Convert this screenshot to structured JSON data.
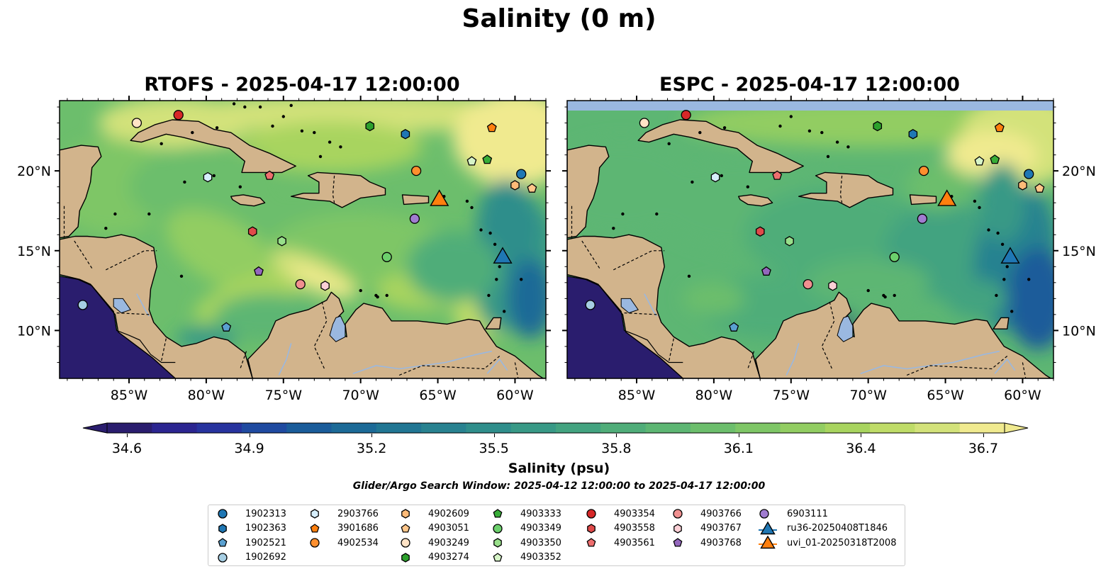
{
  "figure": {
    "title": "Salinity (0 m)",
    "search_window": "Glider/Argo Search Window: 2025-04-12 12:00:00 to 2025-04-17 12:00:00"
  },
  "panels": [
    {
      "title": "RTOFS - 2025-04-17 12:00:00",
      "model": "RTOFS"
    },
    {
      "title": "ESPC - 2025-04-17 12:00:00",
      "model": "ESPC"
    }
  ],
  "map": {
    "lon_ticks": [
      "85°W",
      "80°W",
      "75°W",
      "70°W",
      "65°W",
      "60°W"
    ],
    "lat_ticks": [
      "20°N",
      "15°N",
      "10°N"
    ],
    "land_color": "#d2b48c",
    "lake_color": "#9ab8e0"
  },
  "colorbar": {
    "label": "Salinity (psu)",
    "ticks": [
      "34.6",
      "34.9",
      "35.2",
      "35.5",
      "35.8",
      "36.1",
      "36.4",
      "36.7"
    ],
    "colors": [
      "#2a1d6e",
      "#2b2590",
      "#27339e",
      "#1f4aa0",
      "#1a5c9a",
      "#1c6a97",
      "#217693",
      "#288290",
      "#2f8e8b",
      "#389986",
      "#43a380",
      "#50ad79",
      "#5db673",
      "#6cbe6c",
      "#7ec666",
      "#92cd62",
      "#a8d45f",
      "#bfdc68",
      "#d3e27a",
      "#f0ea8f"
    ]
  },
  "legend": {
    "items": [
      {
        "label": "1902313",
        "marker": "circle",
        "color": "#1f77b4"
      },
      {
        "label": "1902363",
        "marker": "hexagon",
        "color": "#1f77b4"
      },
      {
        "label": "1902521",
        "marker": "pentagon",
        "color": "#5aa0d0"
      },
      {
        "label": "1902692",
        "marker": "circle",
        "color": "#a6cee3"
      },
      {
        "label": "2903766",
        "marker": "hexagon",
        "color": "#d6eefc"
      },
      {
        "label": "3901686",
        "marker": "pentagon",
        "color": "#ff7f0e"
      },
      {
        "label": "4902534",
        "marker": "circle",
        "color": "#ff8f2e"
      },
      {
        "label": "4902609",
        "marker": "hexagon",
        "color": "#ffbb78"
      },
      {
        "label": "4903051",
        "marker": "pentagon",
        "color": "#ffc68a"
      },
      {
        "label": "4903249",
        "marker": "circle",
        "color": "#ffe3c6"
      },
      {
        "label": "4903274",
        "marker": "hexagon",
        "color": "#2ca02c"
      },
      {
        "label": "4903333",
        "marker": "pentagon",
        "color": "#38ad38"
      },
      {
        "label": "4903349",
        "marker": "circle",
        "color": "#6cd06c"
      },
      {
        "label": "4903350",
        "marker": "hexagon",
        "color": "#98df8a"
      },
      {
        "label": "4903352",
        "marker": "pentagon",
        "color": "#d7f5c8"
      },
      {
        "label": "4903354",
        "marker": "circle",
        "color": "#d62728"
      },
      {
        "label": "4903558",
        "marker": "hexagon",
        "color": "#e04a4a"
      },
      {
        "label": "4903561",
        "marker": "pentagon",
        "color": "#ee6e6e"
      },
      {
        "label": "4903766",
        "marker": "circle",
        "color": "#f09090"
      },
      {
        "label": "4903767",
        "marker": "hexagon",
        "color": "#fcd0d6"
      },
      {
        "label": "4903768",
        "marker": "pentagon",
        "color": "#9467bd"
      },
      {
        "label": "6903111",
        "marker": "circle",
        "color": "#a07cd0"
      },
      {
        "label": "ru36-20250408T1846",
        "marker": "triangle",
        "color": "#1f77b4"
      },
      {
        "label": "uvi_01-20250318T2008",
        "marker": "triangle",
        "color": "#ff7f0e"
      }
    ]
  },
  "floats": [
    {
      "id": "1902313",
      "lon": -59.6,
      "lat": 19.8
    },
    {
      "id": "1902363",
      "lon": -67.1,
      "lat": 22.3
    },
    {
      "id": "1902521",
      "lon": -78.7,
      "lat": 10.2
    },
    {
      "id": "1902692",
      "lon": -88.0,
      "lat": 11.6
    },
    {
      "id": "2903766",
      "lon": -79.9,
      "lat": 19.6
    },
    {
      "id": "3901686",
      "lon": -61.5,
      "lat": 22.7
    },
    {
      "id": "4902534",
      "lon": -66.4,
      "lat": 20.0
    },
    {
      "id": "4902609",
      "lon": -60.0,
      "lat": 19.1
    },
    {
      "id": "4903051",
      "lon": -58.9,
      "lat": 18.9
    },
    {
      "id": "4903249",
      "lon": -84.5,
      "lat": 23.0
    },
    {
      "id": "4903274",
      "lon": -69.4,
      "lat": 22.8
    },
    {
      "id": "4903333",
      "lon": -61.8,
      "lat": 20.7
    },
    {
      "id": "4903349",
      "lon": -68.3,
      "lat": 14.6
    },
    {
      "id": "4903350",
      "lon": -75.1,
      "lat": 15.6
    },
    {
      "id": "4903352",
      "lon": -62.8,
      "lat": 20.6
    },
    {
      "id": "4903354",
      "lon": -81.8,
      "lat": 23.5
    },
    {
      "id": "4903558",
      "lon": -77.0,
      "lat": 16.2
    },
    {
      "id": "4903561",
      "lon": -75.9,
      "lat": 19.7
    },
    {
      "id": "4903766",
      "lon": -73.9,
      "lat": 12.9
    },
    {
      "id": "4903767",
      "lon": -72.3,
      "lat": 12.8
    },
    {
      "id": "4903768",
      "lon": -76.6,
      "lat": 13.7
    },
    {
      "id": "6903111",
      "lon": -66.5,
      "lat": 17.0
    }
  ],
  "gliders": [
    {
      "id": "ru36-20250408T1846",
      "lon": -60.8,
      "lat": 14.6
    },
    {
      "id": "uvi_01-20250318T2008",
      "lon": -64.9,
      "lat": 18.2
    }
  ]
}
